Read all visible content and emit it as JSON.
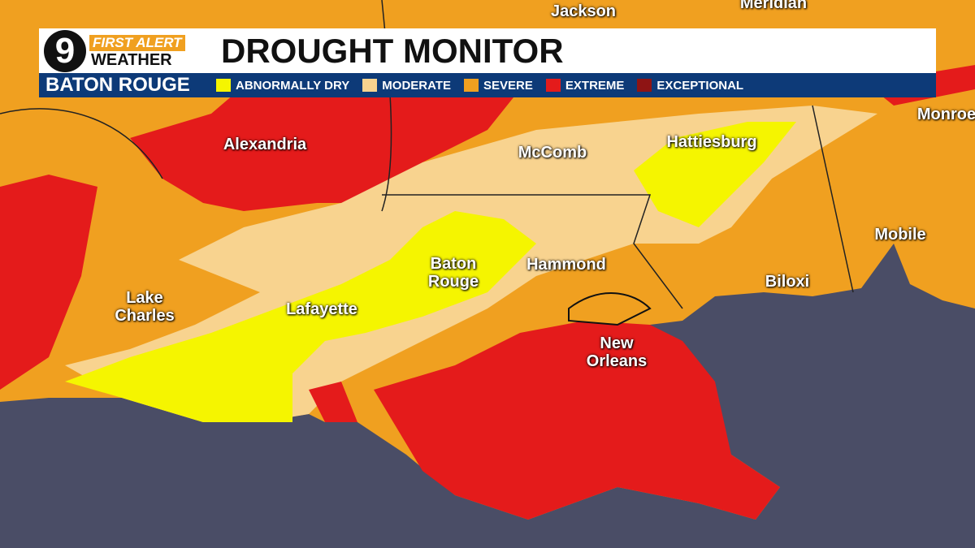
{
  "header": {
    "logo_number": "9",
    "brand_top": "FIRST ALERT",
    "brand_bottom": "WEATHER",
    "title": "DROUGHT MONITOR",
    "location": "BATON ROUGE"
  },
  "legend": [
    {
      "label": "ABNORMALLY DRY",
      "color": "#f5f500"
    },
    {
      "label": "MODERATE",
      "color": "#f8d38f"
    },
    {
      "label": "SEVERE",
      "color": "#f0a020"
    },
    {
      "label": "EXTREME",
      "color": "#e41b1b"
    },
    {
      "label": "EXCEPTIONAL",
      "color": "#8e1414"
    }
  ],
  "cities": [
    {
      "label": "Jackson"
    },
    {
      "label": "Meridian"
    },
    {
      "label": "Monroe"
    },
    {
      "label": "Alexandria"
    },
    {
      "label": "McComb"
    },
    {
      "label": "Hattiesburg"
    },
    {
      "label": "Mobile"
    },
    {
      "label": "Baton Rouge"
    },
    {
      "label": "Hammond"
    },
    {
      "label": "Lake Charles"
    },
    {
      "label": "Lafayette"
    },
    {
      "label": "Biloxi"
    },
    {
      "label": "New Orleans"
    }
  ]
}
